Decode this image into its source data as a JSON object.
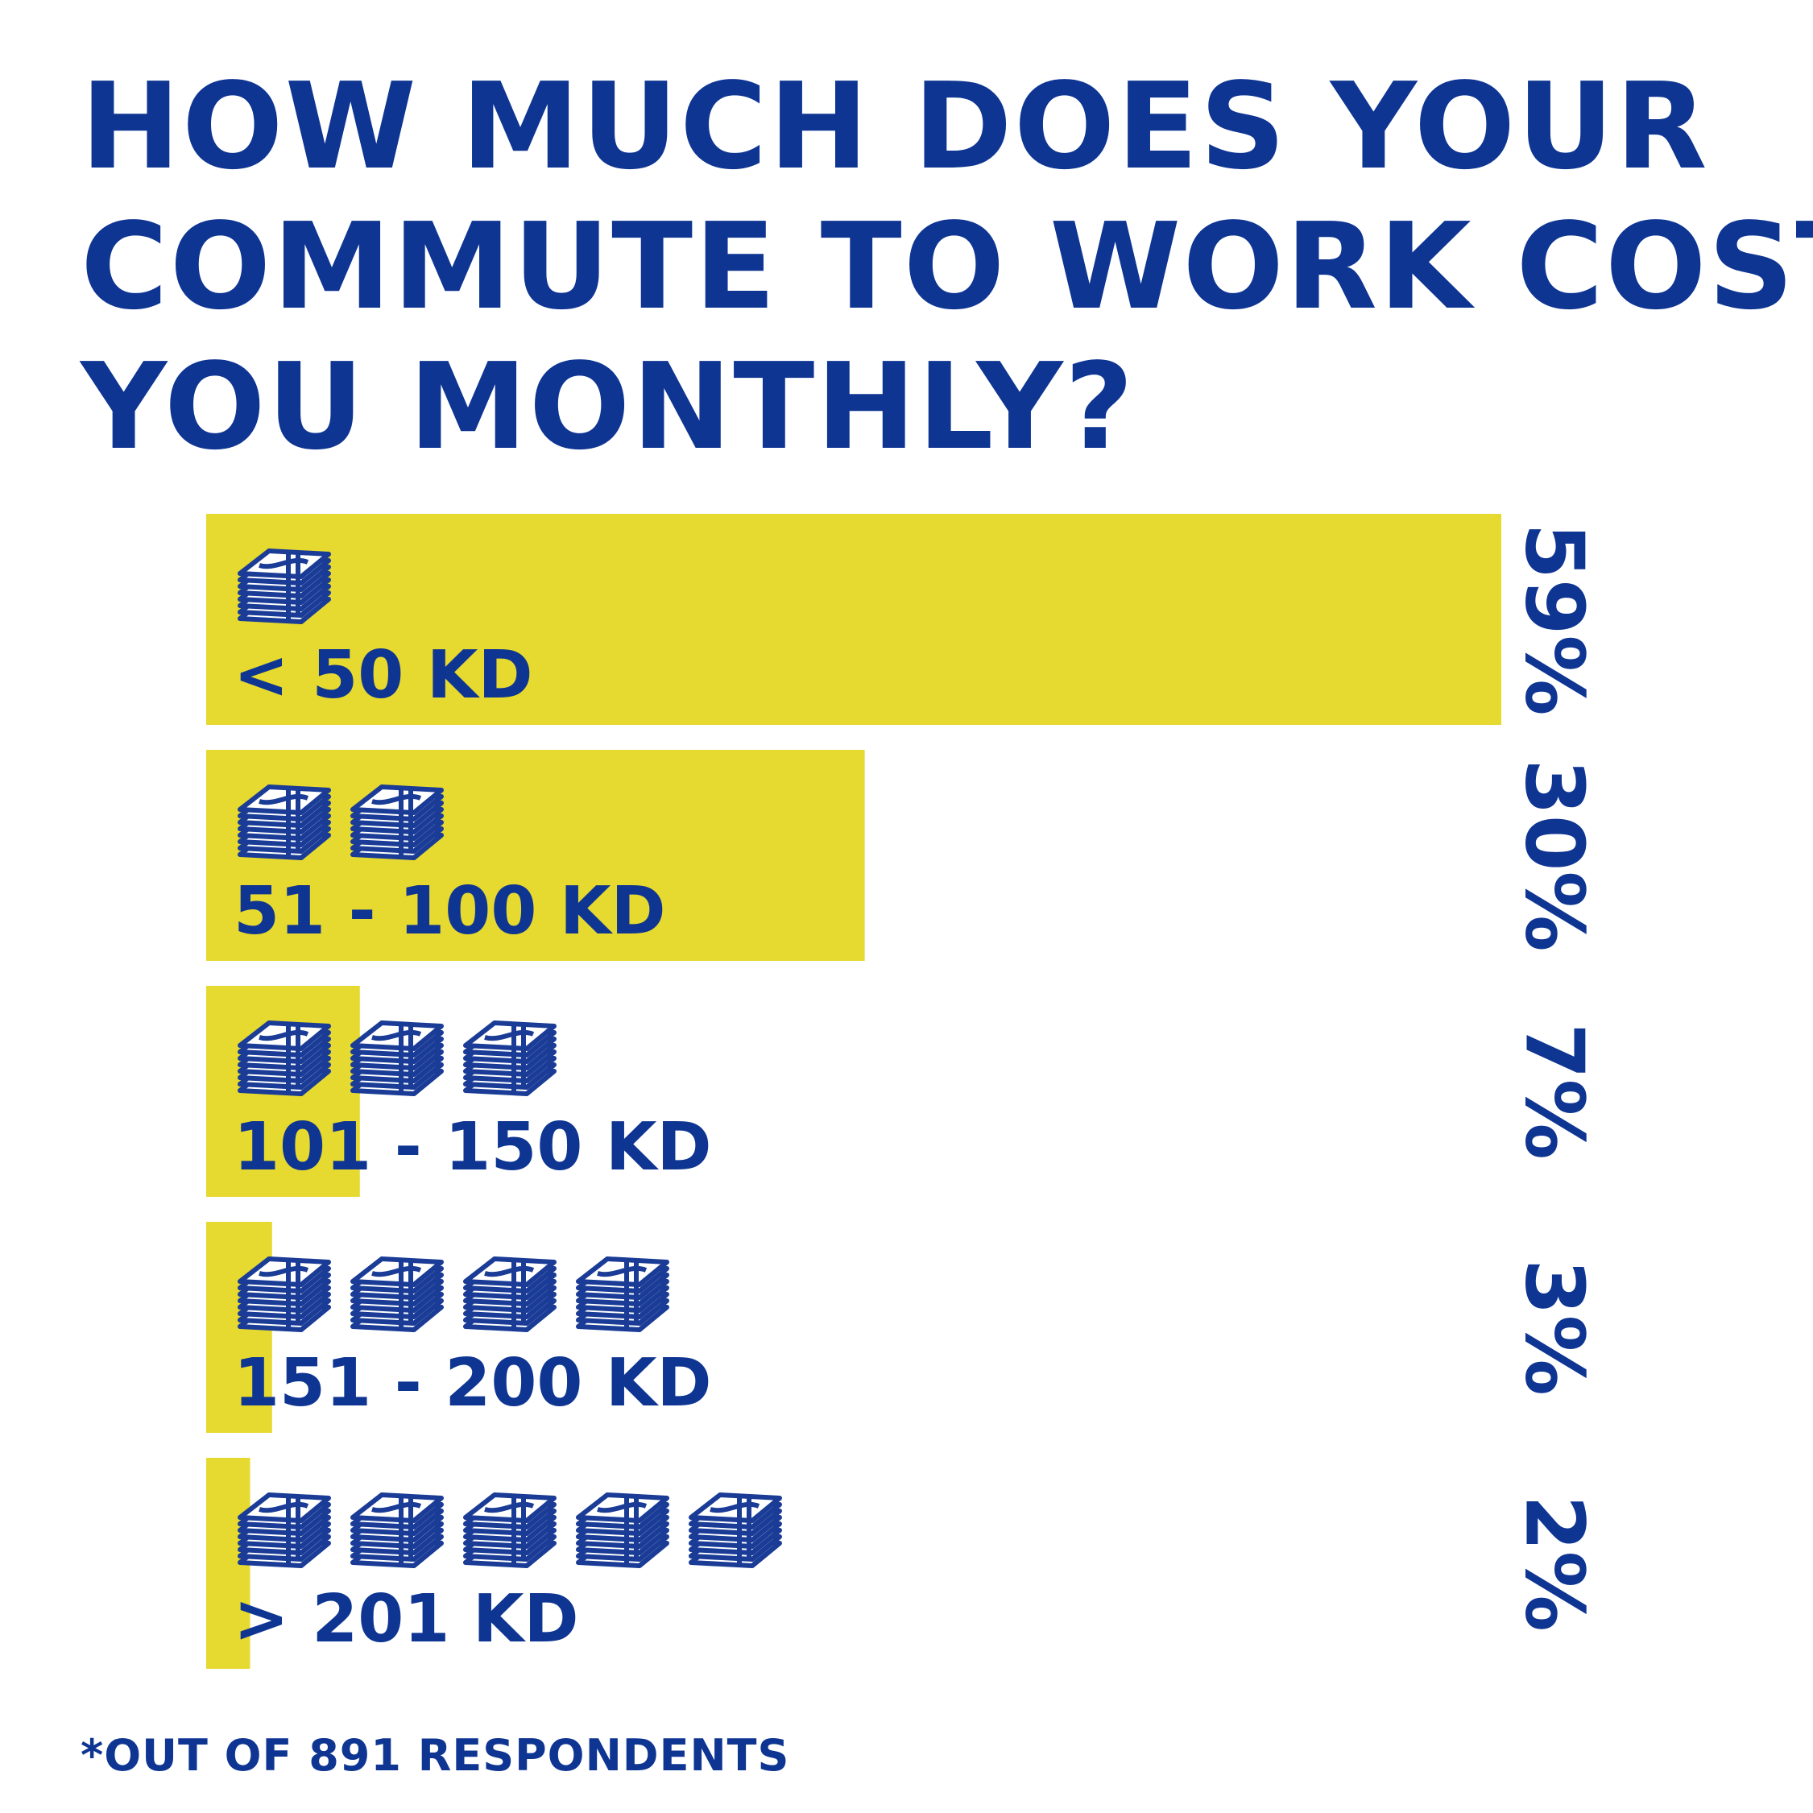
{
  "title_lines": [
    "HOW MUCH DOES YOUR",
    "COMMUTE TO WORK COST",
    "YOU MONTHLY?"
  ],
  "footnote": "*OUT OF 891 RESPONDENTS",
  "colors": {
    "bar": "#e6d930",
    "text": "#0f3593",
    "icon": "#1a3c96"
  },
  "chart_data": {
    "type": "bar",
    "orientation": "horizontal",
    "title": "HOW MUCH DOES YOUR COMMUTE TO WORK COST YOU MONTHLY?",
    "categories": [
      "< 50 KD",
      "51 - 100 KD",
      "101 - 150 KD",
      "151 - 200 KD",
      "> 201 KD"
    ],
    "values": [
      59,
      30,
      7,
      3,
      2
    ],
    "value_labels": [
      "59%",
      "30%",
      "7%",
      "3%",
      "2%"
    ],
    "icon_counts": [
      1,
      2,
      3,
      4,
      5
    ],
    "icon": "money-stack-icon",
    "xlim": [
      0,
      59
    ],
    "grid": false,
    "legend": "none"
  }
}
